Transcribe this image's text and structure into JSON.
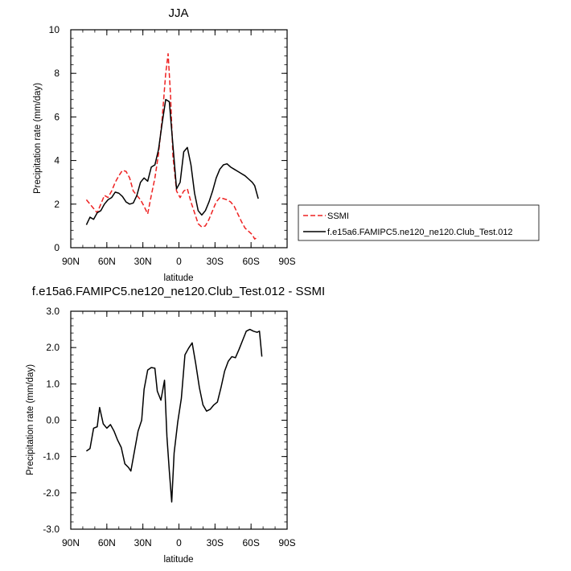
{
  "chart_data": [
    {
      "type": "line",
      "title": "JJA",
      "xlabel": "latitude",
      "ylabel": "Precipitation rate (mm/day)",
      "xlim": [
        90,
        -90
      ],
      "ylim": [
        0,
        10
      ],
      "x_ticks": [
        90,
        60,
        30,
        0,
        -30,
        -60,
        -90
      ],
      "x_tick_labels": [
        "90N",
        "60N",
        "30N",
        "0",
        "30S",
        "60S",
        "90S"
      ],
      "y_ticks": [
        0,
        2,
        4,
        6,
        8,
        10
      ],
      "y_tick_labels": [
        "0",
        "2",
        "4",
        "6",
        "8",
        "10"
      ],
      "legend": {
        "placement": "right",
        "entries": [
          {
            "label": "SSMI",
            "color": "#ee2222",
            "dash": "dashed"
          },
          {
            "label": "f.e15a6.FAMIPC5.ne120_ne120.Club_Test.012",
            "color": "#000000",
            "dash": "solid"
          }
        ]
      },
      "series": [
        {
          "name": "SSMI",
          "color": "#ee2222",
          "dash": "dashed",
          "points": [
            [
              77,
              2.2
            ],
            [
              74,
              2.0
            ],
            [
              71,
              1.8
            ],
            [
              68,
              1.6
            ],
            [
              65,
              2.0
            ],
            [
              62,
              2.4
            ],
            [
              59,
              2.3
            ],
            [
              56,
              2.6
            ],
            [
              53,
              3.0
            ],
            [
              50,
              3.3
            ],
            [
              47,
              3.55
            ],
            [
              44,
              3.5
            ],
            [
              41,
              3.2
            ],
            [
              38,
              2.6
            ],
            [
              35,
              2.4
            ],
            [
              32,
              2.2
            ],
            [
              29,
              1.9
            ],
            [
              26,
              1.55
            ],
            [
              23,
              2.4
            ],
            [
              20,
              3.2
            ],
            [
              17,
              4.3
            ],
            [
              14,
              5.9
            ],
            [
              11,
              8.0
            ],
            [
              9,
              8.9
            ],
            [
              7,
              7.0
            ],
            [
              5,
              4.2
            ],
            [
              2,
              2.6
            ],
            [
              -1,
              2.3
            ],
            [
              -4,
              2.6
            ],
            [
              -7,
              2.7
            ],
            [
              -10,
              2.1
            ],
            [
              -13,
              1.6
            ],
            [
              -16,
              1.1
            ],
            [
              -19,
              0.95
            ],
            [
              -22,
              1.0
            ],
            [
              -25,
              1.3
            ],
            [
              -28,
              1.7
            ],
            [
              -31,
              2.1
            ],
            [
              -34,
              2.3
            ],
            [
              -37,
              2.25
            ],
            [
              -40,
              2.2
            ],
            [
              -43,
              2.1
            ],
            [
              -46,
              1.9
            ],
            [
              -49,
              1.55
            ],
            [
              -52,
              1.2
            ],
            [
              -55,
              0.9
            ],
            [
              -58,
              0.75
            ],
            [
              -61,
              0.6
            ],
            [
              -63,
              0.4
            ],
            [
              -66,
              0.5
            ]
          ]
        },
        {
          "name": "f.e15a6.FAMIPC5.ne120_ne120.Club_Test.012",
          "color": "#000000",
          "dash": "solid",
          "points": [
            [
              77,
              1.05
            ],
            [
              74,
              1.4
            ],
            [
              71,
              1.3
            ],
            [
              68,
              1.6
            ],
            [
              65,
              1.7
            ],
            [
              62,
              2.0
            ],
            [
              59,
              2.2
            ],
            [
              56,
              2.3
            ],
            [
              53,
              2.55
            ],
            [
              50,
              2.5
            ],
            [
              47,
              2.35
            ],
            [
              44,
              2.1
            ],
            [
              41,
              2.0
            ],
            [
              38,
              2.05
            ],
            [
              35,
              2.4
            ],
            [
              32,
              3.0
            ],
            [
              29,
              3.2
            ],
            [
              26,
              3.05
            ],
            [
              23,
              3.7
            ],
            [
              20,
              3.8
            ],
            [
              17,
              4.5
            ],
            [
              14,
              5.7
            ],
            [
              11,
              6.8
            ],
            [
              8,
              6.7
            ],
            [
              5,
              4.7
            ],
            [
              2,
              2.7
            ],
            [
              -1,
              3.0
            ],
            [
              -4,
              4.4
            ],
            [
              -7,
              4.6
            ],
            [
              -10,
              3.8
            ],
            [
              -13,
              2.5
            ],
            [
              -16,
              1.7
            ],
            [
              -19,
              1.5
            ],
            [
              -22,
              1.7
            ],
            [
              -25,
              2.1
            ],
            [
              -28,
              2.6
            ],
            [
              -31,
              3.2
            ],
            [
              -34,
              3.6
            ],
            [
              -37,
              3.8
            ],
            [
              -40,
              3.85
            ],
            [
              -43,
              3.7
            ],
            [
              -46,
              3.6
            ],
            [
              -49,
              3.5
            ],
            [
              -52,
              3.4
            ],
            [
              -55,
              3.3
            ],
            [
              -58,
              3.15
            ],
            [
              -61,
              3.0
            ],
            [
              -63,
              2.85
            ],
            [
              -66,
              2.25
            ]
          ]
        }
      ]
    },
    {
      "type": "line",
      "title": "f.e15a6.FAMIPC5.ne120_ne120.Club_Test.012 - SSMI",
      "xlabel": "latitude",
      "ylabel": "Precipitation rate (mm/day)",
      "xlim": [
        90,
        -90
      ],
      "ylim": [
        -3,
        3
      ],
      "x_ticks": [
        90,
        60,
        30,
        0,
        -30,
        -60,
        -90
      ],
      "x_tick_labels": [
        "90N",
        "60N",
        "30N",
        "0",
        "30S",
        "60S",
        "90S"
      ],
      "y_ticks": [
        -3,
        -2,
        -1,
        0,
        1,
        2,
        3
      ],
      "y_tick_labels": [
        "-3.0",
        "-2.0",
        "-1.0",
        "0.0",
        "1.0",
        "2.0",
        "3.0"
      ],
      "series": [
        {
          "name": "f.e15a6.FAMIPC5.ne120_ne120.Club_Test.012 - SSMI",
          "color": "#000000",
          "dash": "solid",
          "points": [
            [
              77,
              -0.85
            ],
            [
              74,
              -0.78
            ],
            [
              71,
              -0.22
            ],
            [
              68,
              -0.18
            ],
            [
              66,
              0.35
            ],
            [
              63,
              -0.1
            ],
            [
              60,
              -0.22
            ],
            [
              57,
              -0.12
            ],
            [
              54,
              -0.3
            ],
            [
              51,
              -0.55
            ],
            [
              48,
              -0.75
            ],
            [
              45,
              -1.2
            ],
            [
              42,
              -1.3
            ],
            [
              40,
              -1.4
            ],
            [
              37,
              -0.85
            ],
            [
              34,
              -0.3
            ],
            [
              31,
              0.0
            ],
            [
              29,
              0.85
            ],
            [
              26,
              1.38
            ],
            [
              23,
              1.45
            ],
            [
              20,
              1.43
            ],
            [
              18,
              0.8
            ],
            [
              15,
              0.55
            ],
            [
              12,
              1.1
            ],
            [
              10,
              -0.45
            ],
            [
              8,
              -1.4
            ],
            [
              6,
              -2.25
            ],
            [
              4,
              -0.9
            ],
            [
              1,
              -0.05
            ],
            [
              -2,
              0.6
            ],
            [
              -5,
              1.8
            ],
            [
              -8,
              1.98
            ],
            [
              -11,
              2.13
            ],
            [
              -14,
              1.55
            ],
            [
              -17,
              0.9
            ],
            [
              -20,
              0.42
            ],
            [
              -23,
              0.25
            ],
            [
              -26,
              0.3
            ],
            [
              -29,
              0.42
            ],
            [
              -32,
              0.5
            ],
            [
              -35,
              0.9
            ],
            [
              -38,
              1.35
            ],
            [
              -41,
              1.62
            ],
            [
              -44,
              1.75
            ],
            [
              -47,
              1.72
            ],
            [
              -50,
              1.95
            ],
            [
              -53,
              2.2
            ],
            [
              -56,
              2.45
            ],
            [
              -59,
              2.5
            ],
            [
              -62,
              2.45
            ],
            [
              -65,
              2.42
            ],
            [
              -67,
              2.45
            ],
            [
              -69,
              1.75
            ]
          ]
        }
      ]
    }
  ]
}
